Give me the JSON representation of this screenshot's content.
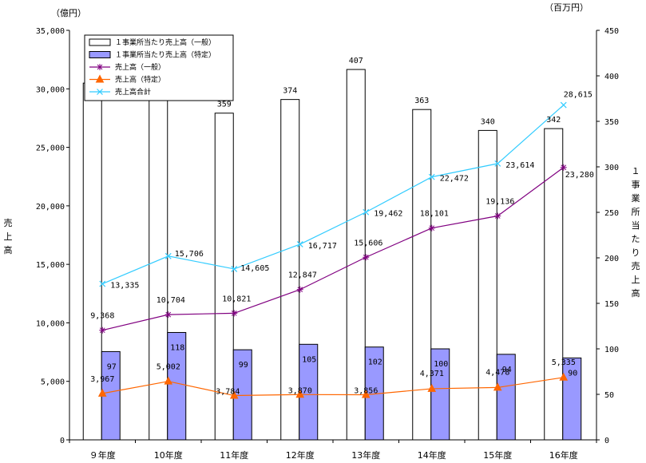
{
  "chart_data": {
    "type": "bar",
    "categories": [
      "９年度",
      "10年度",
      "11年度",
      "12年度",
      "13年度",
      "14年度",
      "15年度",
      "16年度"
    ],
    "units": {
      "left": "（億円）",
      "right": "（百万円）"
    },
    "ylabel_left": "売上高",
    "ylabel_right": "１事業所当たり売上高",
    "ylim_left": [
      0,
      35000
    ],
    "ylim_right": [
      0,
      450
    ],
    "left_ticks": [
      0,
      5000,
      10000,
      15000,
      20000,
      25000,
      30000,
      35000
    ],
    "left_tick_labels": [
      "0",
      "5,000",
      "10,000",
      "15,000",
      "20,000",
      "25,000",
      "30,000",
      "35,000"
    ],
    "right_ticks": [
      0,
      50,
      100,
      150,
      200,
      250,
      300,
      350,
      400,
      450
    ],
    "right_tick_labels": [
      "0",
      "50",
      "100",
      "150",
      "200",
      "250",
      "300",
      "350",
      "400",
      "450"
    ],
    "legend_placement": "top-left",
    "series": [
      {
        "name": "１事業所当たり売上高（一般）",
        "kind": "bar",
        "axis": "right",
        "color": "#ffffff",
        "values": [
          392,
          378,
          359,
          374,
          407,
          363,
          340,
          342
        ],
        "labels": [
          "",
          "",
          "359",
          "374",
          "407",
          "363",
          "340",
          "342"
        ]
      },
      {
        "name": "１事業所当たり売上高（特定）",
        "kind": "bar",
        "axis": "right",
        "color": "#9999ff",
        "values": [
          97,
          118,
          99,
          105,
          102,
          100,
          94,
          90
        ],
        "labels": [
          "97",
          "118",
          "99",
          "105",
          "102",
          "100",
          "94",
          "90"
        ]
      },
      {
        "name": "売上高（一般）",
        "kind": "line",
        "axis": "left",
        "color": "#800080",
        "marker": "star",
        "values": [
          9368,
          10704,
          10821,
          12847,
          15606,
          18101,
          19136,
          23280
        ],
        "labels": [
          "9,368",
          "10,704",
          "10,821",
          "12,847",
          "15,606",
          "18,101",
          "19,136",
          "23,280"
        ]
      },
      {
        "name": "売上高（特定）",
        "kind": "line",
        "axis": "left",
        "color": "#ff6600",
        "marker": "triangle",
        "values": [
          3967,
          5002,
          3784,
          3870,
          3856,
          4371,
          4478,
          5335
        ],
        "labels": [
          "3,967",
          "5,002",
          "3,784",
          "3,870",
          "3,856",
          "4,371",
          "4,478",
          "5,335"
        ]
      },
      {
        "name": "売上高合計",
        "kind": "line",
        "axis": "left",
        "color": "#33ccff",
        "marker": "x",
        "values": [
          13335,
          15706,
          14605,
          16717,
          19462,
          22472,
          23614,
          28615
        ],
        "labels": [
          "13,335",
          "15,706",
          "14,605",
          "16,717",
          "19,462",
          "22,472",
          "23,614",
          "28,615"
        ]
      }
    ]
  }
}
